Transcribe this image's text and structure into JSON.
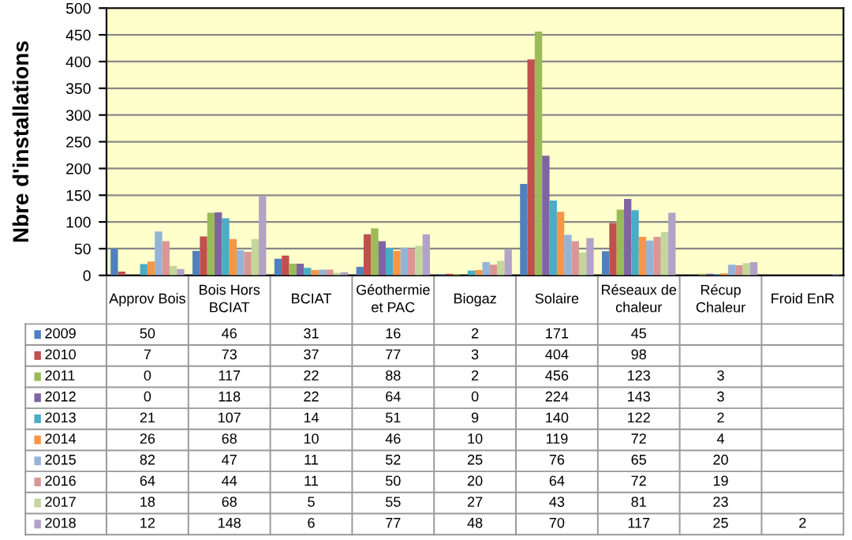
{
  "chart_data": {
    "type": "bar",
    "ylabel": "Nbre d'installations",
    "categories": [
      "Approv Bois",
      "Bois Hors\nBCIAT",
      "BCIAT",
      "Géothermie\net PAC",
      "Biogaz",
      "Solaire",
      "Réseaux de\nchaleur",
      "Récup\nChaleur",
      "Froid EnR"
    ],
    "series": [
      {
        "name": "2009",
        "color": "#4f81bd",
        "values": [
          50,
          46,
          31,
          16,
          2,
          171,
          45,
          null,
          null
        ]
      },
      {
        "name": "2010",
        "color": "#c0504d",
        "values": [
          7,
          73,
          37,
          77,
          3,
          404,
          98,
          null,
          null
        ]
      },
      {
        "name": "2011",
        "color": "#9bbb59",
        "values": [
          0,
          117,
          22,
          88,
          2,
          456,
          123,
          3,
          null
        ]
      },
      {
        "name": "2012",
        "color": "#8064a2",
        "values": [
          0,
          118,
          22,
          64,
          0,
          224,
          143,
          3,
          null
        ]
      },
      {
        "name": "2013",
        "color": "#4bacc6",
        "values": [
          21,
          107,
          14,
          51,
          9,
          140,
          122,
          2,
          null
        ]
      },
      {
        "name": "2014",
        "color": "#f79646",
        "values": [
          26,
          68,
          10,
          46,
          10,
          119,
          72,
          4,
          null
        ]
      },
      {
        "name": "2015",
        "color": "#95b3d7",
        "values": [
          82,
          47,
          11,
          52,
          25,
          76,
          65,
          20,
          null
        ]
      },
      {
        "name": "2016",
        "color": "#d99694",
        "values": [
          64,
          44,
          11,
          50,
          20,
          64,
          72,
          19,
          null
        ]
      },
      {
        "name": "2017",
        "color": "#c3d69b",
        "values": [
          18,
          68,
          5,
          55,
          27,
          43,
          81,
          23,
          null
        ]
      },
      {
        "name": "2018",
        "color": "#b3a2c7",
        "values": [
          12,
          148,
          6,
          77,
          48,
          70,
          117,
          25,
          2
        ]
      }
    ],
    "ylim": [
      0,
      500
    ],
    "yticks": [
      0,
      50,
      100,
      150,
      200,
      250,
      300,
      350,
      400,
      450,
      500
    ],
    "grid": "y",
    "legend": "bottom",
    "data_labels": true,
    "tick_labels": "y"
  }
}
